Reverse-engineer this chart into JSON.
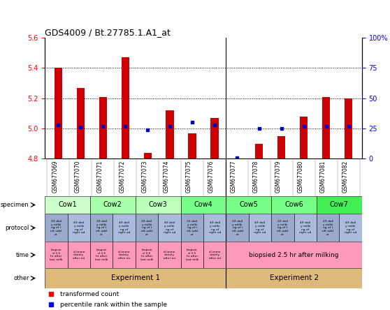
{
  "title": "GDS4009 / Bt.27785.1.A1_at",
  "gsm_ids": [
    "GSM677069",
    "GSM677070",
    "GSM677071",
    "GSM677072",
    "GSM677073",
    "GSM677074",
    "GSM677075",
    "GSM677076",
    "GSM677077",
    "GSM677078",
    "GSM677079",
    "GSM677080",
    "GSM677081",
    "GSM677082"
  ],
  "transformed_counts": [
    5.4,
    5.27,
    5.21,
    5.47,
    4.84,
    5.12,
    4.97,
    5.07,
    4.8,
    4.9,
    4.95,
    5.08,
    5.21,
    5.2
  ],
  "percentile_ranks": [
    28,
    26,
    27,
    27,
    24,
    27,
    30,
    28,
    1,
    25,
    25,
    27,
    27,
    27
  ],
  "ylim_left": [
    4.8,
    5.6
  ],
  "ylim_right": [
    0,
    100
  ],
  "yticks_left": [
    4.8,
    5.0,
    5.2,
    5.4,
    5.6
  ],
  "yticks_right": [
    0,
    25,
    50,
    75,
    100
  ],
  "bar_color": "#cc0000",
  "dot_color": "#0000cc",
  "bar_bottom": 4.8,
  "specimen_groups": [
    "Cow1",
    "Cow2",
    "Cow3",
    "Cow4",
    "Cow5",
    "Cow6",
    "Cow7"
  ],
  "specimen_spans": [
    [
      0,
      2
    ],
    [
      2,
      4
    ],
    [
      4,
      6
    ],
    [
      6,
      8
    ],
    [
      8,
      10
    ],
    [
      10,
      12
    ],
    [
      12,
      14
    ]
  ],
  "specimen_colors": [
    "#ccffcc",
    "#aaffaa",
    "#bbffbb",
    "#77ff88",
    "#77ff88",
    "#77ff88",
    "#44ee55"
  ],
  "proto_color_odd": "#99aacc",
  "proto_color_even": "#aabbdd",
  "time_color": "#ff99bb",
  "exp1_color": "#ddb97a",
  "exp2_color": "#ddb97a",
  "row_labels": [
    "specimen",
    "protocol",
    "time",
    "other"
  ],
  "legend_bar_label": "transformed count",
  "legend_dot_label": "percentile rank within the sample",
  "n_cols": 14,
  "exp_split": 8
}
